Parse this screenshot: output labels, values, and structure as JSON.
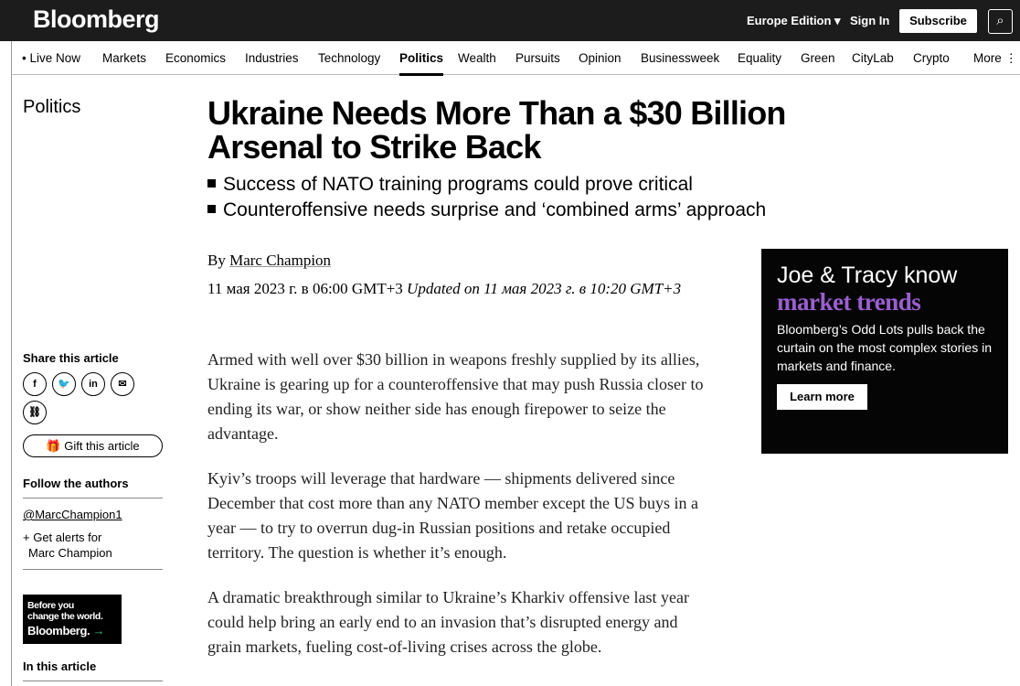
{
  "header": {
    "logo": "Bloomberg",
    "edition": "Europe Edition ▾",
    "sign_in": "Sign In",
    "subscribe": "Subscribe",
    "search_icon": "search-icon"
  },
  "nav": {
    "items": [
      "• Live Now",
      "Markets",
      "Economics",
      "Industries",
      "Technology",
      "Politics",
      "Wealth",
      "Pursuits",
      "Opinion",
      "Businessweek",
      "Equality",
      "Green",
      "CityLab",
      "Crypto",
      "More ⋮"
    ],
    "active": "Politics"
  },
  "section": "Politics",
  "article": {
    "title": "Ukraine Needs More Than a $30 Billion Arsenal to Strike Back",
    "bullets": [
      "Success of NATO training programs could prove critical",
      "Counteroffensive needs surprise and ‘combined arms’ approach"
    ],
    "by": "By ",
    "author": "Marc Champion",
    "date": "11 мая 2023 г. в 06:00 GMT+3 ",
    "updated": "Updated on 11 мая 2023 г. в 10:20 GMT+3",
    "paragraphs": [
      "Armed with well over $30 billion in weapons freshly supplied by its allies, Ukraine is gearing up for a counteroffensive that may push Russia closer to ending its war, or show neither side has enough firepower to seize the advantage.",
      "Kyiv’s troops will leverage that hardware — shipments delivered since December that cost more than any NATO member except the US buys in a year — to try to overrun dug-in Russian positions and retake occupied territory. The question is whether it’s enough.",
      "A dramatic breakthrough similar to Ukraine’s Kharkiv offensive last year could help bring an early end to an invasion that’s disrupted energy and grain markets, fueling cost-of-living crises across the globe."
    ]
  },
  "sidebar": {
    "share_title": "Share this article",
    "share_icons": [
      "f",
      "🐦",
      "in",
      "✉",
      "⛓"
    ],
    "gift": "🎁 Gift this article",
    "follow_title": "Follow the authors",
    "twitter": "@MarcChampion1",
    "alerts_1": "+ Get alerts for",
    "alerts_2": "Marc Champion",
    "promo_1": "Before you",
    "promo_2": "change the world.",
    "promo_3": "Bloomberg.",
    "promo_arrow": "→",
    "in_article": "In this article"
  },
  "ad": {
    "headline": "Joe & Tracy know",
    "highlight": "market trends",
    "body": "Bloomberg’s Odd Lots pulls back the curtain on the most complex stories in markets and finance.",
    "button": "Learn more",
    "accent": "#9b5fd0"
  }
}
